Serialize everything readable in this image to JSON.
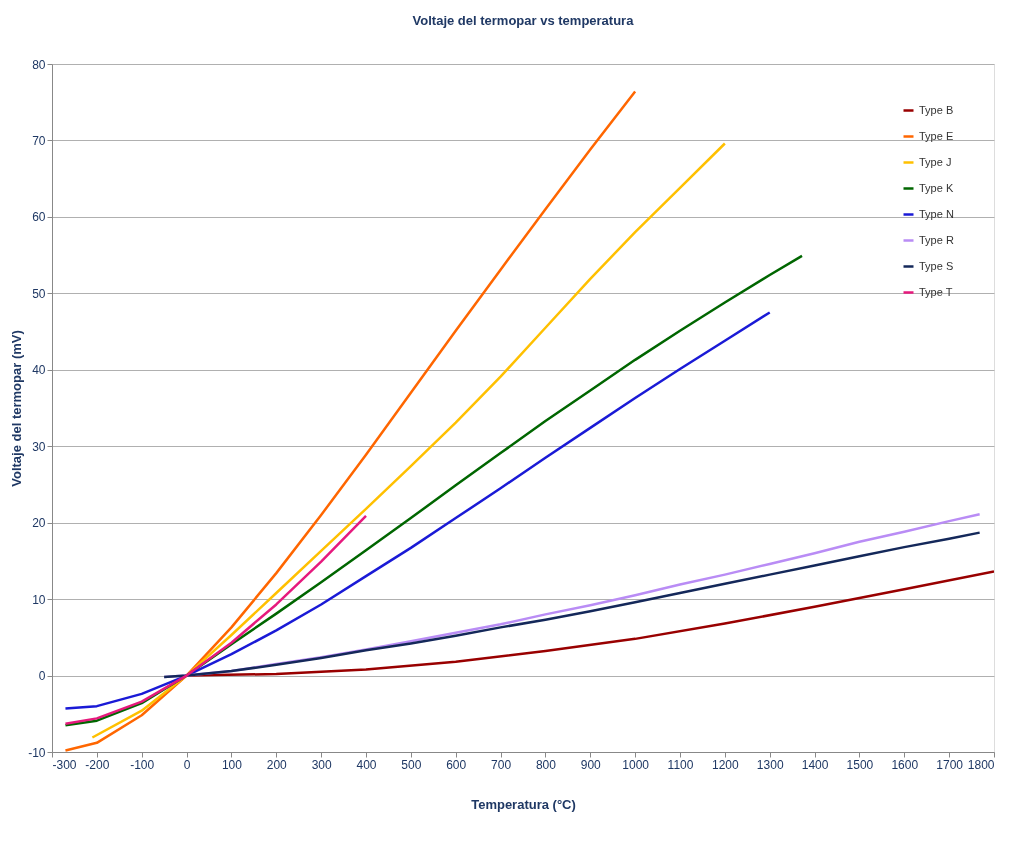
{
  "chart_data": {
    "type": "line",
    "title": "Voltaje del termopar vs temperatura",
    "xlabel": "Temperatura  (°C)",
    "ylabel": "Voltaje del termopar (mV)",
    "xlim": [
      -300,
      1800
    ],
    "xticks": [
      -300,
      -200,
      -100,
      0,
      100,
      200,
      300,
      400,
      500,
      600,
      700,
      800,
      900,
      1000,
      1100,
      1200,
      1300,
      1400,
      1500,
      1600,
      1700,
      1800
    ],
    "ylim": [
      -10,
      80
    ],
    "yticks": [
      -10,
      0,
      10,
      20,
      30,
      40,
      50,
      60,
      70,
      80
    ],
    "grid": "y",
    "legend": "top right",
    "marker": "none",
    "line_style": "solid",
    "series": [
      {
        "name": "Type B",
        "color": "#990000",
        "x": [
          0,
          200,
          400,
          600,
          800,
          1000,
          1200,
          1400,
          1600,
          1800
        ],
        "values": [
          0,
          0.2,
          0.8,
          1.8,
          3.2,
          4.8,
          6.8,
          9.0,
          11.3,
          13.6
        ]
      },
      {
        "name": "Type E",
        "color": "#ff6600",
        "x": [
          -270,
          -200,
          -100,
          0,
          100,
          200,
          300,
          400,
          500,
          600,
          700,
          800,
          900,
          1000
        ],
        "values": [
          -9.8,
          -8.8,
          -5.2,
          0,
          6.3,
          13.4,
          21.0,
          28.9,
          37.0,
          45.1,
          53.1,
          61.0,
          68.8,
          76.4
        ]
      },
      {
        "name": "Type J",
        "color": "#ffc000",
        "x": [
          -210,
          -100,
          0,
          100,
          200,
          300,
          400,
          500,
          600,
          700,
          800,
          900,
          1000,
          1100,
          1200
        ],
        "values": [
          -8.1,
          -4.6,
          0,
          5.3,
          10.8,
          16.3,
          21.8,
          27.4,
          33.1,
          39.1,
          45.5,
          51.9,
          58.0,
          63.8,
          69.6
        ]
      },
      {
        "name": "Type K",
        "color": "#006600",
        "x": [
          -270,
          -200,
          -100,
          0,
          100,
          200,
          300,
          400,
          500,
          600,
          700,
          800,
          900,
          1000,
          1100,
          1200,
          1300,
          1372
        ],
        "values": [
          -6.5,
          -5.9,
          -3.6,
          0,
          4.1,
          8.1,
          12.2,
          16.4,
          20.6,
          24.9,
          29.1,
          33.3,
          37.3,
          41.3,
          45.1,
          48.8,
          52.4,
          54.9
        ]
      },
      {
        "name": "Type N",
        "color": "#1a1ad6",
        "x": [
          -270,
          -200,
          -100,
          0,
          100,
          200,
          300,
          400,
          500,
          600,
          700,
          800,
          900,
          1000,
          1100,
          1200,
          1300
        ],
        "values": [
          -4.3,
          -4.0,
          -2.4,
          0,
          2.8,
          5.9,
          9.3,
          13.0,
          16.7,
          20.6,
          24.5,
          28.5,
          32.4,
          36.3,
          40.1,
          43.8,
          47.5
        ]
      },
      {
        "name": "Type R",
        "color": "#b98cf5",
        "x": [
          -50,
          0,
          100,
          200,
          300,
          400,
          500,
          600,
          700,
          800,
          900,
          1000,
          1100,
          1200,
          1300,
          1400,
          1500,
          1600,
          1700,
          1768
        ],
        "values": [
          -0.2,
          0,
          0.6,
          1.5,
          2.4,
          3.4,
          4.5,
          5.6,
          6.7,
          8.0,
          9.2,
          10.5,
          11.9,
          13.2,
          14.6,
          16.0,
          17.5,
          18.8,
          20.2,
          21.1
        ]
      },
      {
        "name": "Type S",
        "color": "#14285a",
        "x": [
          -50,
          0,
          100,
          200,
          300,
          400,
          500,
          600,
          700,
          800,
          900,
          1000,
          1100,
          1200,
          1300,
          1400,
          1500,
          1600,
          1700,
          1768
        ],
        "values": [
          -0.2,
          0,
          0.6,
          1.4,
          2.3,
          3.3,
          4.2,
          5.2,
          6.3,
          7.3,
          8.4,
          9.6,
          10.8,
          12.0,
          13.2,
          14.4,
          15.6,
          16.8,
          17.9,
          18.7
        ]
      },
      {
        "name": "Type T",
        "color": "#e6197d",
        "x": [
          -270,
          -200,
          -100,
          0,
          100,
          200,
          300,
          400
        ],
        "values": [
          -6.3,
          -5.6,
          -3.4,
          0,
          4.3,
          9.3,
          14.9,
          20.9
        ]
      }
    ]
  }
}
